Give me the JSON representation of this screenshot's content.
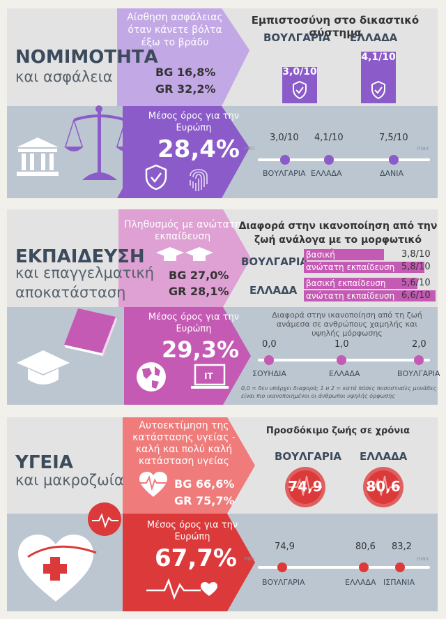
{
  "s1": {
    "title": "ΝΟΜΙΜΟΤΗΤΑ",
    "subtitle": "και ασφάλεια",
    "safety_label": "Αίσθηση ασφάλειας όταν κάνετε βόλτα έξω το βράδυ",
    "bg": "BG 16,8%",
    "gr": "GR 32,2%",
    "trust_title": "Εμπιστοσύνη στο δικαστικό σύστημα",
    "c1_name": "ΒΟΥΛΓΑΡΙΑ",
    "c1_value": "3,0/10",
    "c2_name": "ΕΛΛΑΔΑ",
    "c2_value": "4,1/10",
    "avg_label": "Μέσος όρος για την Ευρώπη",
    "avg_value": "28,4%",
    "scale": {
      "min": "min",
      "max": "max",
      "points": [
        {
          "label": "ΒΟΥΛΓΑΡΙΑ",
          "value": "3,0/10",
          "num": 3.0
        },
        {
          "label": "ΕΛΛΑΔΑ",
          "value": "4,1/10",
          "num": 4.1
        },
        {
          "label": "ΔΑΝΙΑ",
          "value": "7,5/10",
          "num": 7.5
        }
      ]
    }
  },
  "s2": {
    "title": "ΕΚΠΑΙΔΕΥΣΗ",
    "subtitle1": "και επαγγελματική",
    "subtitle2": "αποκατάσταση",
    "pop_label": "Πληθυσμός με ανώτατη εκπαίδευση",
    "bg": "BG 27,0%",
    "gr": "GR 28,1%",
    "diff_title": "Διαφορά στην ικανοποίηση από την ζωή ανάλογα με το μορφωτικό επίπεδο",
    "c1_name": "ΒΟΥΛΓΑΡΙΑ",
    "c2_name": "ΕΛΛΑΔΑ",
    "basic_label": "βασική εκπαίδευση",
    "higher_label": "ανώτατη εκπαίδευση",
    "bg_basic": "3,8/10",
    "bg_higher": "5,8/10",
    "gr_basic": "5,6/10",
    "gr_higher": "6,6/10",
    "bars": {
      "bg_basic": 3.8,
      "bg_higher": 5.8,
      "gr_basic": 5.6,
      "gr_higher": 6.6
    },
    "avg_label": "Μέσος όρος για την Ευρώπη",
    "avg_value": "29,3%",
    "it_label": "IT",
    "scale_title": "Διαφορά στην ικανοποίηση από τη ζωή ανάμεσα σε ανθρώπους χαμηλής και υψηλής μόρφωσης",
    "scale": {
      "points": [
        {
          "label": "ΣΟΥΗΔΙΑ",
          "value": "0,0"
        },
        {
          "label": "ΕΛΛΑΔΑ",
          "value": "1,0"
        },
        {
          "label": "ΒΟΥΛΓΑΡΙΑ",
          "value": "2,0"
        }
      ]
    },
    "footnote": "0,0 = δεν υπάρχει διαφορά; 1 и 2 = κατά πόσες ποσοστιαίες μονάδες είναι πιο ικανοποιημένοι οι άνθρωποι υψηλής όρφωσης"
  },
  "s3": {
    "title": "ΥΓΕΙΑ",
    "subtitle": "και μακροζωία",
    "self_label": "Αυτοεκτίμηση της κατάστασης υγείας - καλή και πολύ καλή κατάσταση υγείας",
    "bg": "BG 66,6%",
    "gr": "GR 75,7%",
    "life_title": "Προσδόκιμο ζωής σε χρόνια",
    "c1_name": "ΒΟΥΛΓΑΡΙΑ",
    "c1_value": "74,9",
    "c2_name": "ΕΛΛΑΔΑ",
    "c2_value": "80,6",
    "avg_label": "Μέσος όρος για την Ευρώπη",
    "avg_value": "67,7%",
    "scale": {
      "min": "min",
      "max": "max",
      "points": [
        {
          "label": "ΒΟΥΛΓΑΡΙΑ",
          "value": "74,9",
          "num": 74.9
        },
        {
          "label": "ΕΛΛΑΔΑ",
          "value": "80,6",
          "num": 80.6
        },
        {
          "label": "ΙΣΠΑΝΙΑ",
          "value": "83,2",
          "num": 83.2
        }
      ]
    }
  },
  "colors": {
    "purple": "#8a5bc9",
    "purple_light": "#c3a8e6",
    "pink": "#c55ab4",
    "pink_light": "#dfa0d3",
    "red": "#dc3a3a",
    "red_light": "#ef7b7b",
    "band_dark": "#bcc6d0",
    "band_light": "#e3e3e3"
  }
}
